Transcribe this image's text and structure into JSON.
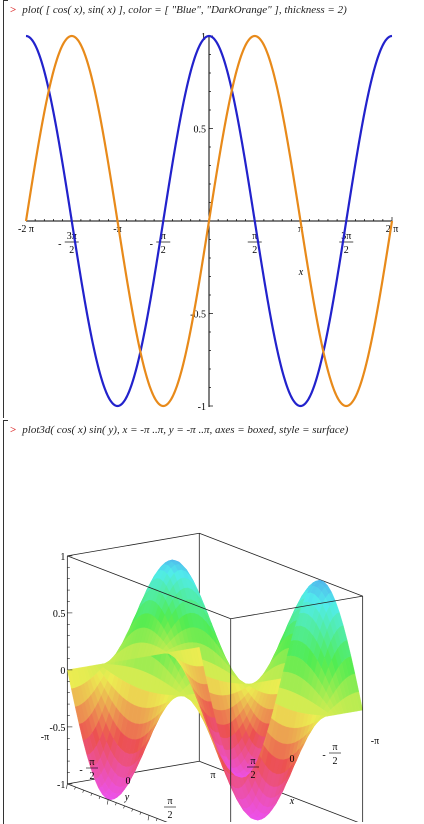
{
  "worksheet": {
    "prompt": ">",
    "cmd1": "plot( [ cos( x), sin( x) ], color = [ \"Blue\", \"DarkOrange\" ], thickness = 2)",
    "cmd2": "plot3d( cos( x) sin( y), x = -π ..π, y = -π ..π, axes = boxed, style = surface)"
  },
  "chart_data": [
    {
      "type": "line",
      "title": "",
      "xlabel": "x",
      "ylabel": "",
      "xlim": [
        -6.2832,
        6.2832
      ],
      "ylim": [
        -1,
        1
      ],
      "x_ticks": [
        "-2 π",
        "- 3π/2",
        "-π",
        "- π/2",
        "π/2",
        "π",
        "3π/2",
        "2 π"
      ],
      "y_ticks": [
        "1",
        "0.5",
        "-0.5",
        "-1"
      ],
      "series": [
        {
          "function": "cos(x)",
          "color": "#2222cc"
        },
        {
          "function": "sin(x)",
          "color": "#e88a1a"
        }
      ]
    },
    {
      "type": "surface3d",
      "function": "cos(x) sin(y)",
      "xlim": [
        -3.1416,
        3.1416
      ],
      "ylim": [
        -3.1416,
        3.1416
      ],
      "zlim": [
        -1,
        1
      ],
      "axes": "boxed",
      "z_ticks": [
        "1",
        "0.5",
        "0",
        "-0.5",
        "-1"
      ],
      "y_ticks": [
        "-π",
        "- π/2",
        "0",
        "π/2",
        "π"
      ],
      "x_ticks": [
        "π",
        "π/2",
        "0",
        "- π/2",
        "-π"
      ],
      "xlabel": "x",
      "ylabel": "y"
    }
  ]
}
